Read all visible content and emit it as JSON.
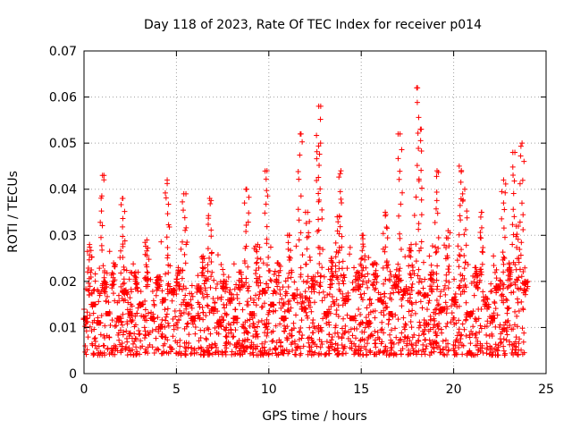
{
  "chart_data": {
    "type": "scatter",
    "title": "Day 118 of 2023, Rate Of TEC Index for receiver p014",
    "xlabel": "GPS time / hours",
    "ylabel": "ROTI / TECUs",
    "xlim": [
      0,
      25
    ],
    "ylim": [
      0,
      0.07
    ],
    "xticks": [
      0,
      5,
      10,
      15,
      20,
      25
    ],
    "xtick_labels": [
      "0",
      "5",
      "10",
      "15",
      "20",
      "25"
    ],
    "yticks": [
      0,
      0.01,
      0.02,
      0.03,
      0.04,
      0.05,
      0.06,
      0.07
    ],
    "ytick_labels": [
      "0",
      "0.01",
      "0.02",
      "0.03",
      "0.04",
      "0.05",
      "0.06",
      "0.07"
    ],
    "grid": true,
    "marker": "+",
    "color": "#ff0000",
    "series": [
      {
        "name": "ROTI",
        "x": [
          0.1,
          0.3,
          0.5,
          0.8,
          1.0,
          1.1,
          1.3,
          1.6,
          1.9,
          2.1,
          2.2,
          2.5,
          2.8,
          3.1,
          3.4,
          3.7,
          4.0,
          4.3,
          4.5,
          4.8,
          5.1,
          5.4,
          5.6,
          5.9,
          6.2,
          6.5,
          6.8,
          7.0,
          7.3,
          7.6,
          7.9,
          8.2,
          8.5,
          8.8,
          9.1,
          9.4,
          9.7,
          9.9,
          10.2,
          10.5,
          10.8,
          11.1,
          11.4,
          11.7,
          11.9,
          12.1,
          12.4,
          12.7,
          12.8,
          13.1,
          13.4,
          13.7,
          13.9,
          14.2,
          14.5,
          14.8,
          15.1,
          15.4,
          15.7,
          16.0,
          16.3,
          16.6,
          16.9,
          17.1,
          17.4,
          17.7,
          18.0,
          18.2,
          18.5,
          18.8,
          19.1,
          19.4,
          19.7,
          20.0,
          20.3,
          20.6,
          20.9,
          21.2,
          21.5,
          21.8,
          22.1,
          22.4,
          22.7,
          23.0,
          23.2,
          23.5,
          23.7,
          23.9
        ],
        "y": [
          0.012,
          0.028,
          0.015,
          0.011,
          0.043,
          0.02,
          0.013,
          0.024,
          0.012,
          0.038,
          0.018,
          0.013,
          0.022,
          0.015,
          0.029,
          0.012,
          0.021,
          0.016,
          0.042,
          0.018,
          0.023,
          0.039,
          0.015,
          0.012,
          0.019,
          0.025,
          0.038,
          0.014,
          0.011,
          0.02,
          0.016,
          0.012,
          0.022,
          0.04,
          0.013,
          0.028,
          0.018,
          0.044,
          0.015,
          0.024,
          0.012,
          0.03,
          0.017,
          0.052,
          0.014,
          0.035,
          0.021,
          0.058,
          0.05,
          0.013,
          0.025,
          0.034,
          0.044,
          0.016,
          0.012,
          0.022,
          0.03,
          0.011,
          0.024,
          0.016,
          0.035,
          0.013,
          0.021,
          0.052,
          0.018,
          0.028,
          0.062,
          0.053,
          0.017,
          0.022,
          0.044,
          0.014,
          0.031,
          0.016,
          0.045,
          0.04,
          0.013,
          0.023,
          0.035,
          0.015,
          0.012,
          0.019,
          0.042,
          0.024,
          0.048,
          0.032,
          0.05,
          0.02
        ],
        "band_min": 0.004,
        "band_max": 0.026
      }
    ]
  }
}
